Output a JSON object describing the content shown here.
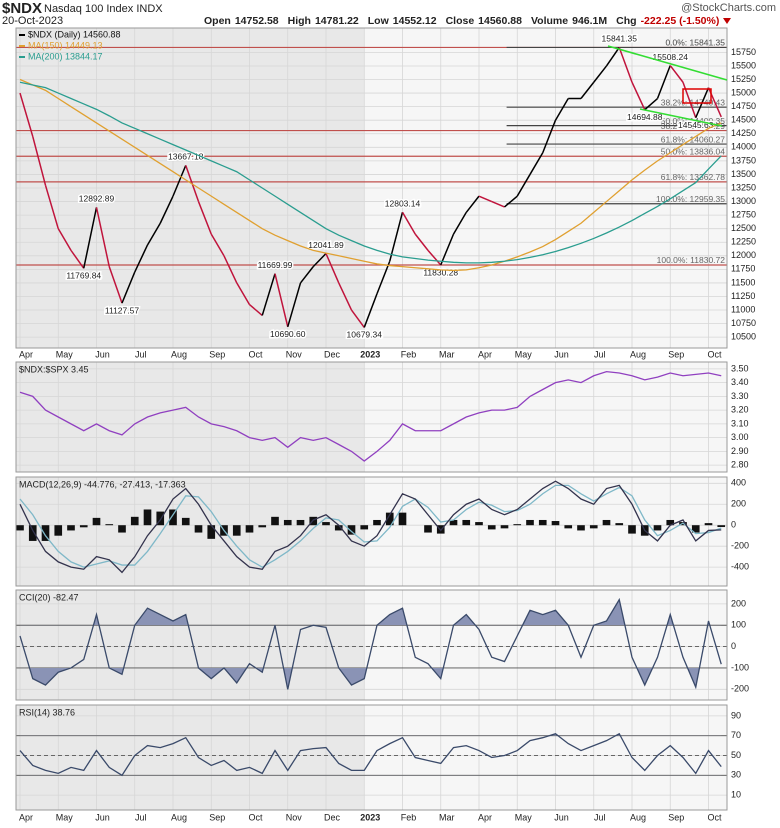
{
  "header": {
    "symbol": "$NDX",
    "name": "Nasdaq 100 Index  INDX",
    "date": "20-Oct-2023",
    "quote": [
      {
        "label": "Open",
        "value": "14752.58"
      },
      {
        "label": "High",
        "value": "14781.22"
      },
      {
        "label": "Low",
        "value": "14552.12"
      },
      {
        "label": "Close",
        "value": "14560.88"
      },
      {
        "label": "Volume",
        "value": "946.1M"
      },
      {
        "label": "Chg",
        "value": "-222.25 (-1.50%)"
      }
    ],
    "source": "@StockCharts.com"
  },
  "chart_data": [
    {
      "type": "line",
      "categories": [
        "Apr",
        null,
        null,
        "May",
        null,
        null,
        "Jun",
        null,
        null,
        "Jul",
        null,
        null,
        "Aug",
        null,
        null,
        "Sep",
        null,
        null,
        "Oct",
        null,
        null,
        "Nov",
        null,
        null,
        "Dec",
        null,
        null,
        "2023",
        null,
        null,
        "Feb",
        null,
        null,
        "Mar",
        null,
        null,
        "Apr",
        null,
        null,
        "May",
        null,
        null,
        "Jun",
        null,
        null,
        "Jul",
        null,
        null,
        "Aug",
        null,
        null,
        "Sep",
        null,
        null,
        "Oct",
        null
      ],
      "ylim": [
        10300,
        16200
      ],
      "yticks": [
        10500,
        10750,
        11000,
        11250,
        11500,
        11750,
        12000,
        12250,
        12500,
        12750,
        13000,
        13250,
        13500,
        13750,
        14000,
        14250,
        14500,
        14750,
        15000,
        15250,
        15500,
        15750
      ],
      "grid": true,
      "series": [
        {
          "name": "$NDX (Daily) 14560.88",
          "color": "#000000",
          "down_color": "#c0143c",
          "values": [
            15000,
            14200,
            13300,
            12500,
            12100,
            11769.84,
            12892.89,
            11800,
            11127.57,
            11700,
            12200,
            12600,
            13100,
            13667.18,
            13000,
            12400,
            12000,
            11500,
            11100,
            10900,
            11669.99,
            10690.6,
            11500,
            11800,
            12041.89,
            11500,
            11000,
            10679.34,
            11300,
            11900,
            12803.14,
            12400,
            12100,
            11830.28,
            12400,
            12800,
            13100,
            13000,
            12900,
            13100,
            13500,
            13900,
            14500,
            14900,
            14900,
            15200,
            15500,
            15841.35,
            15200,
            14694.88,
            14900,
            15508.24,
            15200,
            14545.63,
            15100,
            14560.88
          ],
          "value_labels": [
            null,
            null,
            null,
            null,
            null,
            "11769.84",
            "12892.89",
            null,
            "11127.57",
            null,
            null,
            null,
            null,
            "13667.18",
            null,
            null,
            null,
            null,
            null,
            null,
            "11669.99",
            "10690.60",
            null,
            null,
            "12041.89",
            null,
            null,
            "10679.34",
            null,
            null,
            "12803.14",
            null,
            null,
            "11830.28",
            null,
            null,
            null,
            null,
            null,
            null,
            null,
            null,
            null,
            null,
            null,
            null,
            null,
            "15841.35",
            null,
            "14694.88",
            null,
            "15508.24",
            null,
            "14545.63",
            null,
            null
          ]
        },
        {
          "name": "MA(150) 14449.13",
          "color": "#e0a030",
          "values": [
            15250,
            15150,
            15050,
            14900,
            14750,
            14600,
            14450,
            14300,
            14150,
            14000,
            13850,
            13700,
            13550,
            13400,
            13250,
            13100,
            12950,
            12800,
            12650,
            12500,
            12380,
            12280,
            12180,
            12100,
            12050,
            12000,
            11950,
            11900,
            11850,
            11820,
            11800,
            11780,
            11760,
            11740,
            11730,
            11740,
            11780,
            11830,
            11900,
            11980,
            12070,
            12170,
            12300,
            12450,
            12600,
            12800,
            13000,
            13200,
            13400,
            13580,
            13750,
            13900,
            14050,
            14200,
            14350,
            14449.13
          ]
        },
        {
          "name": "MA(200) 13844.17",
          "color": "#2a9d8f",
          "values": [
            15200,
            15150,
            15100,
            15000,
            14900,
            14800,
            14700,
            14580,
            14450,
            14350,
            14250,
            14150,
            14050,
            13950,
            13850,
            13750,
            13650,
            13550,
            13400,
            13250,
            13100,
            12950,
            12800,
            12650,
            12500,
            12380,
            12280,
            12180,
            12100,
            12030,
            11980,
            11950,
            11920,
            11900,
            11880,
            11870,
            11870,
            11880,
            11900,
            11930,
            11970,
            12020,
            12080,
            12150,
            12230,
            12320,
            12420,
            12530,
            12650,
            12780,
            12910,
            13050,
            13200,
            13350,
            13600,
            13844.17
          ]
        }
      ],
      "fibonacci": [
        {
          "color": "#c0504d",
          "levels": [
            {
              "label": "0.0%: 15841.35",
              "value": 15841.35
            },
            {
              "label": "38.2%: 14309.29",
              "value": 14309.29
            },
            {
              "label": "50.0%: 13836.04",
              "value": 13836.04
            },
            {
              "label": "61.8%: 13362.78",
              "value": 13362.78
            },
            {
              "label": "100.0%: 11830.72",
              "value": 11830.72
            }
          ]
        },
        {
          "color": "#444444",
          "levels": [
            {
              "label": "0.0%: 15841.35",
              "value": 15841.35
            },
            {
              "label": "38.2%: 14740.43",
              "value": 14740.43
            },
            {
              "label": "50.0%: 14400.35",
              "value": 14400.35
            },
            {
              "label": "61.8%: 14060.27",
              "value": 14060.27
            },
            {
              "label": "100.0%: 12959.35",
              "value": 12959.35
            }
          ]
        }
      ]
    },
    {
      "type": "line",
      "legend": "$NDX:$SPX 3.45",
      "ylim": [
        2.75,
        3.55
      ],
      "yticks": [
        {
          "value": 2.8,
          "label": "2.80"
        },
        {
          "value": 2.9,
          "label": "2.90"
        },
        {
          "value": 3.0,
          "label": "3.00"
        },
        {
          "value": 3.1,
          "label": "3.10"
        },
        {
          "value": 3.2,
          "label": "3.20"
        },
        {
          "value": 3.3,
          "label": "3.30"
        },
        {
          "value": 3.4,
          "label": "3.40"
        },
        {
          "value": 3.5,
          "label": "3.50"
        }
      ],
      "grid": true,
      "series": [
        {
          "color": "#9040c0",
          "values": [
            3.33,
            3.3,
            3.2,
            3.15,
            3.1,
            3.05,
            3.1,
            3.05,
            3.02,
            3.1,
            3.15,
            3.18,
            3.2,
            3.22,
            3.15,
            3.1,
            3.08,
            3.05,
            3.0,
            2.98,
            3.0,
            2.93,
            3.0,
            2.98,
            3.0,
            2.95,
            2.9,
            2.83,
            2.9,
            2.98,
            3.1,
            3.05,
            3.05,
            3.05,
            3.1,
            3.15,
            3.18,
            3.2,
            3.2,
            3.22,
            3.3,
            3.35,
            3.4,
            3.42,
            3.4,
            3.45,
            3.48,
            3.47,
            3.45,
            3.42,
            3.44,
            3.47,
            3.45,
            3.46,
            3.47,
            3.45
          ]
        }
      ]
    },
    {
      "type": "line",
      "legend": "MACD(12,26,9) -44.776, -27.413, -17.363",
      "ylim": [
        -580,
        460
      ],
      "yticks": [
        -400,
        -200,
        0,
        200,
        400
      ],
      "grid": true,
      "series": [
        {
          "type": "bar",
          "color": "#111111",
          "values": [
            -50,
            -150,
            -150,
            -100,
            -50,
            -20,
            70,
            10,
            -70,
            80,
            150,
            130,
            150,
            70,
            -70,
            -130,
            -100,
            -100,
            -70,
            -20,
            80,
            50,
            50,
            80,
            30,
            -50,
            -90,
            -40,
            50,
            120,
            120,
            0,
            -70,
            -80,
            50,
            50,
            30,
            -40,
            -30,
            10,
            50,
            50,
            40,
            -30,
            -50,
            -30,
            50,
            20,
            -80,
            -100,
            -50,
            50,
            30,
            -70,
            20,
            -17.363
          ]
        },
        {
          "color": "#7fb8c8",
          "values": [
            250,
            100,
            -100,
            -250,
            -350,
            -400,
            -370,
            -340,
            -380,
            -380,
            -250,
            -80,
            100,
            280,
            270,
            130,
            -50,
            -200,
            -330,
            -400,
            -330,
            -250,
            -150,
            -30,
            70,
            50,
            -60,
            -160,
            -150,
            -20,
            180,
            250,
            170,
            30,
            50,
            150,
            220,
            190,
            130,
            140,
            200,
            300,
            380,
            380,
            300,
            230,
            300,
            360,
            280,
            50,
            -100,
            -50,
            20,
            -80,
            -70,
            -27.413
          ]
        },
        {
          "color": "#33334d",
          "values": [
            200,
            -50,
            -250,
            -350,
            -400,
            -420,
            -300,
            -330,
            -450,
            -300,
            -100,
            50,
            250,
            350,
            200,
            0,
            -150,
            -300,
            -400,
            -420,
            -250,
            -200,
            -100,
            50,
            100,
            0,
            -150,
            -200,
            -100,
            100,
            300,
            250,
            100,
            -50,
            100,
            200,
            250,
            150,
            100,
            150,
            250,
            350,
            420,
            350,
            250,
            200,
            350,
            380,
            200,
            -50,
            -150,
            0,
            50,
            -150,
            -50,
            -44.776
          ]
        }
      ]
    },
    {
      "type": "line",
      "legend": "CCI(20) -82.47",
      "ylim": [
        -250,
        265
      ],
      "yticks": [
        -200,
        -100,
        0,
        100,
        200
      ],
      "grid": true,
      "overbought": 100,
      "oversold": -100,
      "midline": 0,
      "fill_color": "#8a93b5",
      "series": [
        {
          "color": "#3a4a6a",
          "values": [
            50,
            -150,
            -180,
            -120,
            -100,
            -60,
            150,
            -100,
            -130,
            100,
            180,
            150,
            120,
            150,
            -100,
            -150,
            -100,
            -170,
            -80,
            -120,
            100,
            -200,
            80,
            100,
            90,
            -100,
            -180,
            -150,
            100,
            150,
            180,
            -50,
            -80,
            -150,
            100,
            150,
            80,
            -50,
            -70,
            50,
            170,
            150,
            170,
            100,
            -50,
            100,
            120,
            220,
            -50,
            -180,
            -50,
            150,
            -50,
            -190,
            120,
            -82.47
          ]
        }
      ]
    },
    {
      "type": "line",
      "legend": "RSI(14) 38.76",
      "ylim": [
        -5,
        101
      ],
      "yticks": [
        10,
        30,
        50,
        70,
        90
      ],
      "grid": true,
      "overbought": 70,
      "oversold": 30,
      "midline": 50,
      "fill_color": "#8a93b5",
      "series": [
        {
          "color": "#3a4a6a",
          "values": [
            55,
            40,
            35,
            32,
            38,
            35,
            55,
            38,
            30,
            50,
            60,
            58,
            62,
            68,
            48,
            40,
            45,
            35,
            38,
            32,
            55,
            35,
            55,
            57,
            58,
            42,
            35,
            35,
            55,
            62,
            68,
            48,
            45,
            42,
            58,
            60,
            55,
            48,
            50,
            55,
            65,
            68,
            72,
            62,
            55,
            60,
            65,
            72,
            48,
            35,
            50,
            60,
            48,
            32,
            55,
            38.76
          ]
        }
      ]
    }
  ]
}
